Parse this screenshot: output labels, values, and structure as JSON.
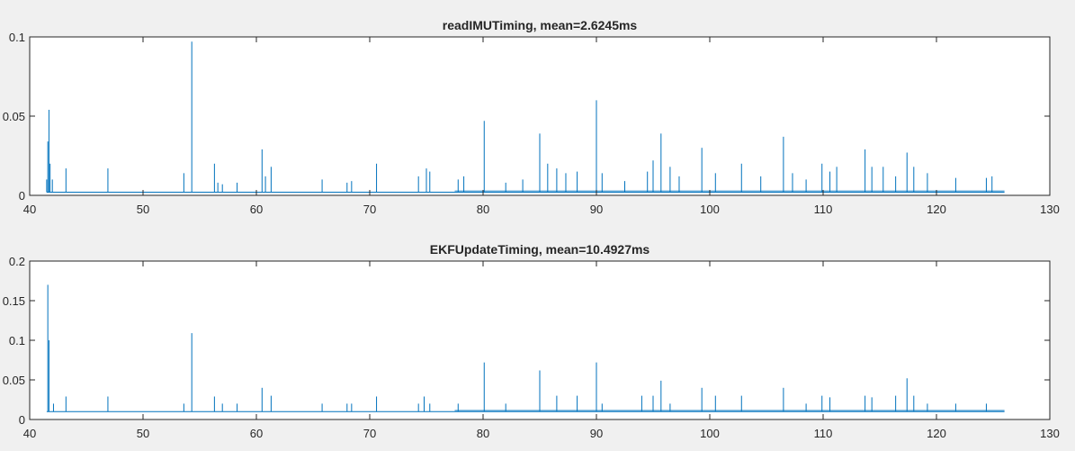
{
  "colors": {
    "background": "#f0f0f0",
    "axes": "#262626",
    "series": "#0072bd"
  },
  "chart_data": [
    {
      "type": "line",
      "title": "readIMUTiming, mean=2.6245ms",
      "xlabel": "",
      "ylabel": "",
      "xlim": [
        40,
        130
      ],
      "ylim": [
        0,
        0.1
      ],
      "xticks": [
        40,
        50,
        60,
        70,
        80,
        90,
        100,
        110,
        120,
        130
      ],
      "yticks": [
        0,
        0.05,
        0.1
      ],
      "ytick_labels": [
        "0",
        "0.05",
        "0.1"
      ],
      "grid": false,
      "series": [
        {
          "baseline": 0.002,
          "x_range": [
            41.5,
            126
          ],
          "x": [
            41.5,
            41.6,
            41.7,
            41.8,
            42.0,
            43.2,
            46.9,
            53.6,
            54.3,
            56.3,
            56.6,
            57.0,
            58.3,
            60.5,
            60.8,
            61.3,
            65.8,
            68.0,
            68.4,
            70.6,
            74.3,
            75.0,
            75.3,
            77.8,
            78.3,
            80.1,
            82.0,
            83.5,
            85.0,
            85.7,
            86.5,
            87.3,
            88.3,
            90.0,
            90.5,
            92.5,
            94.5,
            95.0,
            95.7,
            96.5,
            97.3,
            99.3,
            100.5,
            102.8,
            104.5,
            106.5,
            107.3,
            108.5,
            109.9,
            110.6,
            111.2,
            113.7,
            114.3,
            115.3,
            116.4,
            117.4,
            118.0,
            119.2,
            121.7,
            124.4,
            124.9
          ],
          "y": [
            0.01,
            0.034,
            0.054,
            0.02,
            0.01,
            0.017,
            0.017,
            0.014,
            0.097,
            0.02,
            0.008,
            0.007,
            0.008,
            0.029,
            0.012,
            0.018,
            0.01,
            0.008,
            0.009,
            0.02,
            0.012,
            0.017,
            0.015,
            0.01,
            0.012,
            0.047,
            0.008,
            0.01,
            0.039,
            0.02,
            0.017,
            0.014,
            0.015,
            0.06,
            0.014,
            0.009,
            0.015,
            0.022,
            0.039,
            0.018,
            0.012,
            0.03,
            0.014,
            0.02,
            0.012,
            0.037,
            0.014,
            0.01,
            0.02,
            0.015,
            0.018,
            0.029,
            0.018,
            0.018,
            0.012,
            0.027,
            0.018,
            0.014,
            0.011,
            0.011,
            0.012
          ]
        }
      ]
    },
    {
      "type": "line",
      "title": "EKFUpdateTiming, mean=10.4927ms",
      "xlabel": "",
      "ylabel": "",
      "xlim": [
        40,
        130
      ],
      "ylim": [
        0,
        0.2
      ],
      "xticks": [
        40,
        50,
        60,
        70,
        80,
        90,
        100,
        110,
        120,
        130
      ],
      "yticks": [
        0,
        0.05,
        0.1,
        0.15,
        0.2
      ],
      "ytick_labels": [
        "0",
        "0.05",
        "0.1",
        "0.15",
        "0.2"
      ],
      "grid": false,
      "series": [
        {
          "baseline": 0.01,
          "x_range": [
            41.5,
            126
          ],
          "x": [
            41.6,
            41.7,
            42.1,
            43.2,
            46.9,
            53.6,
            54.3,
            56.3,
            57.0,
            58.3,
            60.5,
            61.3,
            65.8,
            68.0,
            68.4,
            70.6,
            74.3,
            74.8,
            75.3,
            77.8,
            80.1,
            82.0,
            85.0,
            86.5,
            88.3,
            90.0,
            90.5,
            94.0,
            95.0,
            95.7,
            96.5,
            99.3,
            100.5,
            102.8,
            106.5,
            108.5,
            109.9,
            110.6,
            113.7,
            114.3,
            116.4,
            117.4,
            118.0,
            119.2,
            121.7,
            124.4
          ],
          "y": [
            0.17,
            0.1,
            0.02,
            0.029,
            0.029,
            0.02,
            0.109,
            0.029,
            0.02,
            0.02,
            0.04,
            0.03,
            0.02,
            0.02,
            0.02,
            0.029,
            0.02,
            0.029,
            0.02,
            0.02,
            0.072,
            0.02,
            0.062,
            0.03,
            0.03,
            0.072,
            0.02,
            0.03,
            0.03,
            0.049,
            0.02,
            0.04,
            0.03,
            0.03,
            0.04,
            0.02,
            0.03,
            0.028,
            0.03,
            0.028,
            0.03,
            0.052,
            0.03,
            0.02,
            0.02,
            0.02
          ]
        }
      ]
    }
  ]
}
